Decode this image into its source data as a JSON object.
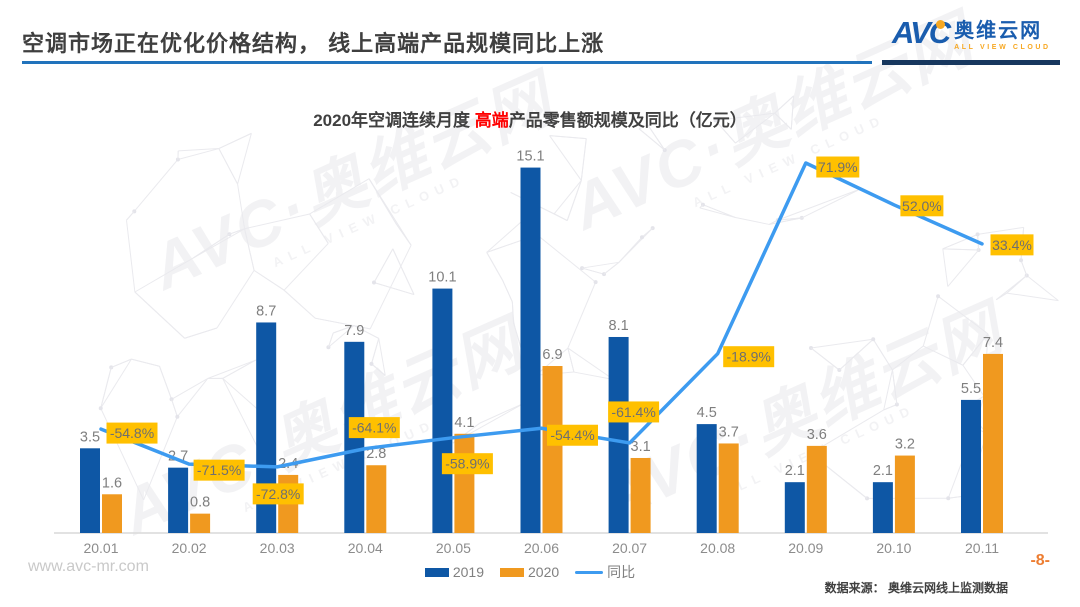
{
  "slide": {
    "header_title": "空调市场正在优化价格结构， 线上高端产品规模同比上涨",
    "logo": {
      "abbr": "AVC",
      "name_cn": "奥维云网",
      "name_en": "ALL VIEW CLOUD"
    },
    "watermark": {
      "big": "AVC·奥维云网",
      "small": "ALL VIEW CLOUD"
    },
    "footer": {
      "website": "www.avc-mr.com",
      "source": "数据来源： 奥维云网线上监测数据",
      "page": "-8-"
    }
  },
  "chart_data": {
    "type": "bar+line",
    "title_prefix": "2020年空调连续月度 ",
    "title_highlight": "高端",
    "title_suffix": "产品零售额规模及同比（亿元）",
    "categories": [
      "20.01",
      "20.02",
      "20.03",
      "20.04",
      "20.05",
      "20.06",
      "20.07",
      "20.08",
      "20.09",
      "20.10",
      "20.11"
    ],
    "series": [
      {
        "name": "2019",
        "color": "#0E57A5",
        "values": [
          3.5,
          2.7,
          8.7,
          7.9,
          10.1,
          15.1,
          8.1,
          4.5,
          2.1,
          2.1,
          5.5
        ]
      },
      {
        "name": "2020",
        "color": "#F0991F",
        "values": [
          1.6,
          0.8,
          2.4,
          2.8,
          4.1,
          6.9,
          3.1,
          3.7,
          3.6,
          3.2,
          7.4
        ]
      }
    ],
    "line_series": {
      "name": "同比",
      "color": "#3D9BF0",
      "values_pct": [
        -54.8,
        -71.5,
        -72.8,
        -64.1,
        -58.9,
        -54.4,
        -61.4,
        -18.9,
        71.9,
        52.0,
        33.4
      ],
      "labels": [
        "-54.8%",
        "-71.5%",
        "-72.8%",
        "-64.1%",
        "-58.9%",
        "-54.4%",
        "-61.4%",
        "-18.9%",
        "71.9%",
        "52.0%",
        "33.4%"
      ]
    },
    "label_bg": "#FFC000",
    "label_text_color": "#6F6F6F",
    "value_text_color": "#7F7F7F",
    "axis_text_color": "#8C8C8C",
    "ylim_bars": [
      0,
      16
    ],
    "ylim_pct": [
      -80,
      80
    ],
    "grid": false,
    "legend_position": "bottom"
  }
}
